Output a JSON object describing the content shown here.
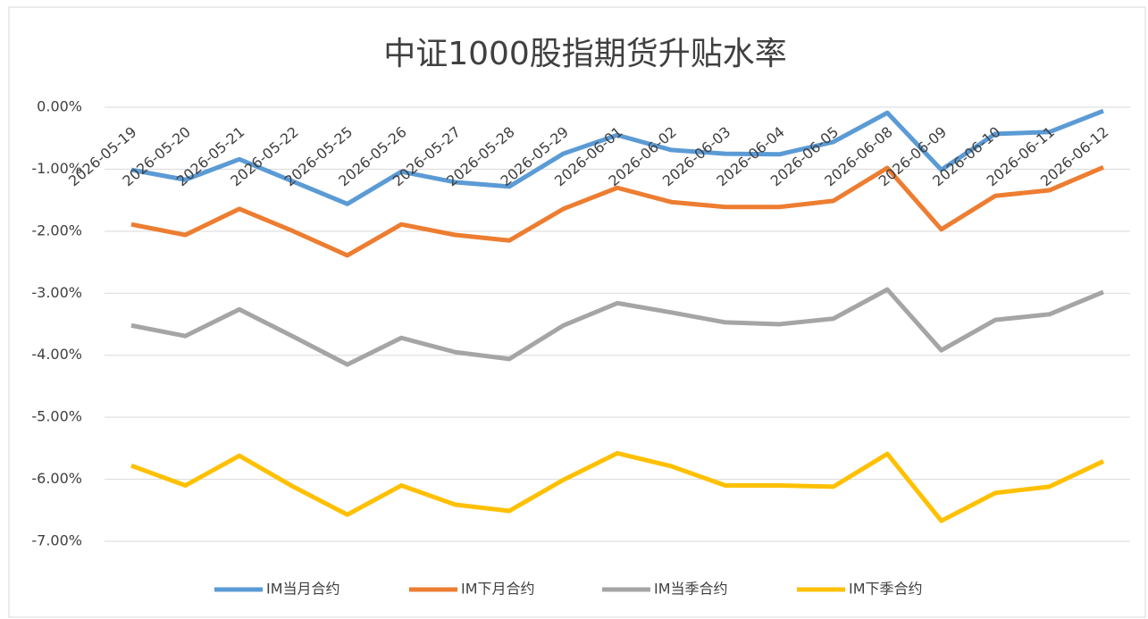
{
  "chart_data": {
    "type": "line",
    "title": "中证1000股指期货升贴水率",
    "categories": [
      "2026-05-19",
      "2026-05-20",
      "2026-05-21",
      "2026-05-22",
      "2026-05-25",
      "2026-05-26",
      "2026-05-27",
      "2026-05-28",
      "2026-05-29",
      "2026-06-01",
      "2026-06-02",
      "2026-06-03",
      "2026-06-04",
      "2026-06-05",
      "2026-06-08",
      "2026-06-09",
      "2026-06-10",
      "2026-06-11",
      "2026-06-12"
    ],
    "series": [
      {
        "name": "IM当月合约",
        "color": "#5b9bd5",
        "values": [
          -1.01,
          -1.17,
          -0.84,
          -1.2,
          -1.56,
          -1.04,
          -1.21,
          -1.28,
          -0.75,
          -0.45,
          -0.69,
          -0.75,
          -0.76,
          -0.56,
          -0.09,
          -1.01,
          -0.43,
          -0.4,
          -0.06
        ]
      },
      {
        "name": "IM下月合约",
        "color": "#ed7d31",
        "values": [
          -1.89,
          -2.06,
          -1.64,
          -2.0,
          -2.39,
          -1.89,
          -2.06,
          -2.15,
          -1.64,
          -1.3,
          -1.53,
          -1.61,
          -1.61,
          -1.51,
          -0.98,
          -1.97,
          -1.43,
          -1.34,
          -0.97
        ]
      },
      {
        "name": "IM当季合约",
        "color": "#a5a5a5",
        "values": [
          -3.52,
          -3.69,
          -3.26,
          -3.7,
          -4.15,
          -3.72,
          -3.95,
          -4.06,
          -3.52,
          -3.16,
          -3.31,
          -3.47,
          -3.5,
          -3.41,
          -2.94,
          -3.92,
          -3.43,
          -3.34,
          -2.98
        ]
      },
      {
        "name": "IM下季合约",
        "color": "#ffc000",
        "values": [
          -5.78,
          -6.1,
          -5.62,
          -6.12,
          -6.57,
          -6.1,
          -6.41,
          -6.51,
          -6.01,
          -5.58,
          -5.79,
          -6.1,
          -6.1,
          -6.12,
          -5.59,
          -6.67,
          -6.22,
          -6.12,
          -5.71
        ]
      }
    ],
    "ylim": [
      -7,
      0
    ],
    "yticks": [
      {
        "value": 0,
        "label": "0.00%"
      },
      {
        "value": -1,
        "label": "-1.00%"
      },
      {
        "value": -2,
        "label": "-2.00%"
      },
      {
        "value": -3,
        "label": "-3.00%"
      },
      {
        "value": -4,
        "label": "-4.00%"
      },
      {
        "value": -5,
        "label": "-5.00%"
      },
      {
        "value": -6,
        "label": "-6.00%"
      },
      {
        "value": -7,
        "label": "-7.00%"
      }
    ],
    "grid": true,
    "legend": "bottom"
  }
}
